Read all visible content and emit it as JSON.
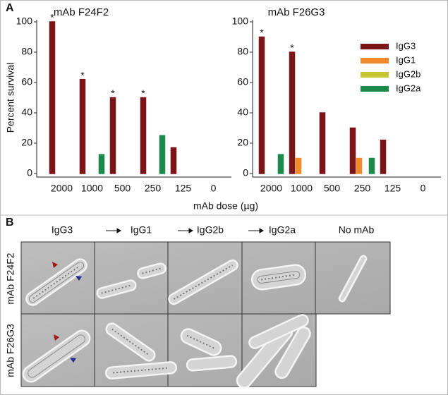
{
  "panel_a": {
    "label": "A",
    "x_label": "mAb dose (µg)"
  },
  "chart_data": [
    {
      "type": "bar",
      "title": "mAb F24F2",
      "y_label": "Percent survival",
      "categories": [
        "2000",
        "1000",
        "500",
        "250",
        "125",
        "0"
      ],
      "series": [
        {
          "color": "#7a1518",
          "values": [
            100,
            62,
            50,
            50,
            17,
            0
          ],
          "annotations": [
            "*",
            "*",
            "*",
            "*",
            null,
            null
          ]
        },
        {
          "color": "#f28a2c",
          "values": [
            0,
            0,
            0,
            0,
            0,
            0
          ]
        },
        {
          "color": "#c6c634",
          "values": [
            0,
            0,
            0,
            0,
            0,
            0
          ]
        },
        {
          "color": "#1d8a4b",
          "values": [
            0,
            12.5,
            0,
            25,
            0,
            0
          ]
        }
      ],
      "ylim": [
        0,
        100
      ],
      "yticks": [
        0,
        20,
        40,
        60,
        80,
        100
      ]
    },
    {
      "type": "bar",
      "title": "mAb F26G3",
      "categories": [
        "2000",
        "1000",
        "500",
        "250",
        "125",
        "0"
      ],
      "series": [
        {
          "name": "IgG3",
          "color": "#7a1518",
          "values": [
            90,
            80,
            40,
            30,
            22,
            0
          ],
          "annotations": [
            "*",
            "*",
            null,
            null,
            null,
            null
          ]
        },
        {
          "name": "IgG1",
          "color": "#f28a2c",
          "values": [
            0,
            10,
            0,
            10,
            0,
            0
          ]
        },
        {
          "name": "IgG2b",
          "color": "#c6c634",
          "values": [
            0,
            0,
            0,
            0,
            0,
            0
          ]
        },
        {
          "name": "IgG2a",
          "color": "#1d8a4b",
          "values": [
            12.5,
            0,
            0,
            10,
            0,
            0
          ]
        }
      ],
      "ylim": [
        0,
        100
      ],
      "yticks": [
        0,
        20,
        40,
        60,
        80,
        100
      ],
      "legend": "top-right"
    }
  ],
  "panel_b": {
    "label": "B",
    "columns": [
      "IgG3",
      "IgG1",
      "IgG2b",
      "IgG2a",
      "No mAb"
    ],
    "rows": [
      "mAb F24F2",
      "mAb F26G3"
    ]
  }
}
